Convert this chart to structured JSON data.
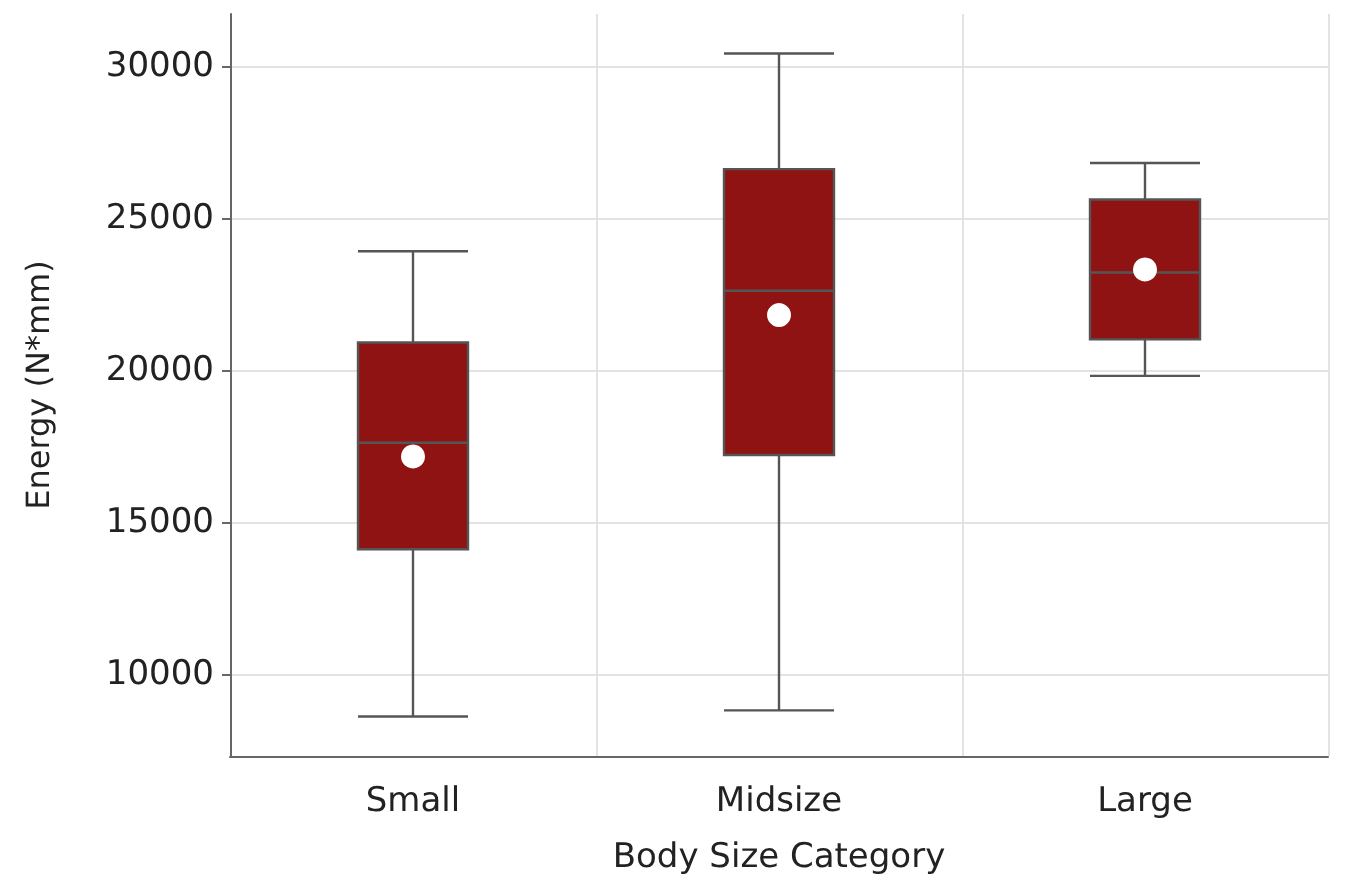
{
  "chart_data": {
    "type": "box",
    "xlabel": "Body Size Category",
    "ylabel": "Energy (N*mm)",
    "categories": [
      "Small",
      "Midsize",
      "Large"
    ],
    "series": [
      {
        "color": "#8f1313",
        "boxes": [
          {
            "low": 8600,
            "q1": 14100,
            "median": 17600,
            "q3": 20900,
            "high": 23900
          },
          {
            "low": 8800,
            "q1": 17200,
            "median": 22600,
            "q3": 26600,
            "high": 30400
          },
          {
            "low": 19800,
            "q1": 21000,
            "median": 23200,
            "q3": 25600,
            "high": 26800
          }
        ]
      },
      {
        "type": "scatter",
        "color": "#ffffff",
        "marker": "circle",
        "x": [
          "Small",
          "Midsize",
          "Large"
        ],
        "values": [
          17150,
          21800,
          23300
        ]
      }
    ],
    "ylim": [
      7300,
      31700
    ],
    "yticks": [
      10000,
      15000,
      20000,
      25000,
      30000
    ],
    "grid": true
  }
}
